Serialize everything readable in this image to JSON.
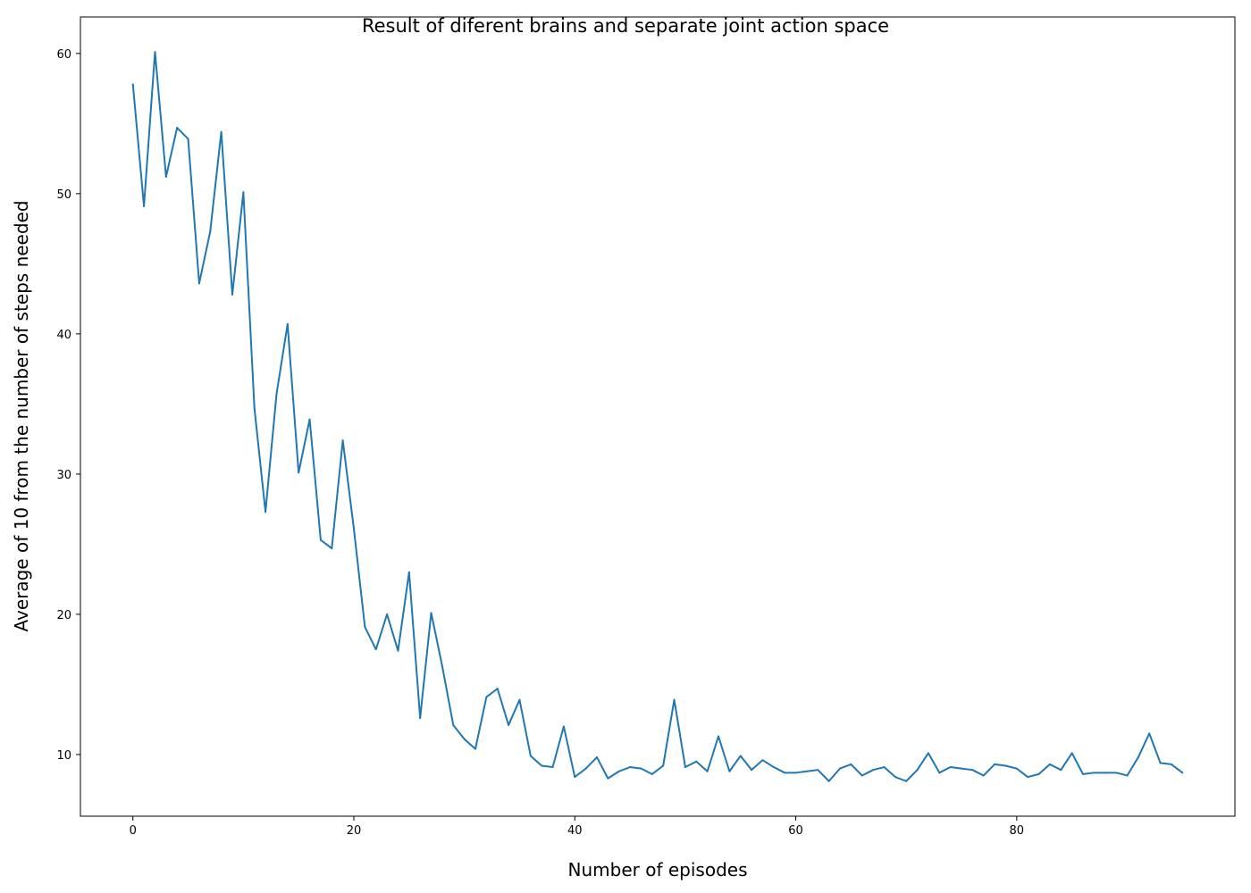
{
  "chart_data": {
    "type": "line",
    "title": "Result of diferent brains and separate joint action space",
    "xlabel": "Number of episodes",
    "ylabel": "Average of 10 from the number of steps needed",
    "xlim": [
      -4.75,
      99.75
    ],
    "ylim": [
      5.6,
      62.6
    ],
    "xticks": [
      0,
      20,
      40,
      60,
      80
    ],
    "yticks": [
      10,
      20,
      30,
      40,
      50,
      60
    ],
    "xtick_labels": [
      "0",
      "20",
      "40",
      "60",
      "80"
    ],
    "ytick_labels": [
      "10",
      "20",
      "30",
      "40",
      "50",
      "60"
    ],
    "grid": false,
    "series": [
      {
        "color": "#1f77b4",
        "x": [
          0,
          1,
          2,
          3,
          4,
          5,
          6,
          7,
          8,
          9,
          10,
          11,
          12,
          13,
          14,
          15,
          16,
          17,
          18,
          19,
          20,
          21,
          22,
          23,
          24,
          25,
          26,
          27,
          28,
          29,
          30,
          31,
          32,
          33,
          34,
          35,
          36,
          37,
          38,
          39,
          40,
          41,
          42,
          43,
          44,
          45,
          46,
          47,
          48,
          49,
          50,
          51,
          52,
          53,
          54,
          55,
          56,
          57,
          58,
          59,
          60,
          61,
          62,
          63,
          64,
          65,
          66,
          67,
          68,
          69,
          70,
          71,
          72,
          73,
          74,
          75,
          76,
          77,
          78,
          79,
          80,
          81,
          82,
          83,
          84,
          85,
          86,
          87,
          88,
          89,
          90,
          91,
          92,
          93,
          94,
          95
        ],
        "y": [
          57.8,
          49.1,
          60.1,
          51.2,
          54.7,
          53.9,
          43.6,
          47.3,
          54.4,
          42.8,
          50.1,
          34.7,
          27.3,
          35.7,
          40.7,
          30.1,
          33.9,
          25.3,
          24.7,
          32.4,
          26.1,
          19.1,
          17.5,
          20.0,
          17.4,
          23.0,
          12.6,
          20.1,
          16.3,
          12.1,
          11.1,
          10.4,
          14.1,
          14.7,
          12.1,
          13.9,
          9.9,
          9.2,
          9.1,
          12.0,
          8.4,
          9.0,
          9.8,
          8.3,
          8.8,
          9.1,
          9.0,
          8.6,
          9.2,
          13.9,
          9.1,
          9.5,
          8.8,
          11.3,
          8.8,
          9.9,
          8.9,
          9.6,
          9.1,
          8.7,
          8.7,
          8.8,
          8.9,
          8.1,
          9.0,
          9.3,
          8.5,
          8.9,
          9.1,
          8.4,
          8.1,
          8.9,
          10.1,
          8.7,
          9.1,
          9.0,
          8.9,
          8.5,
          9.3,
          9.2,
          9.0,
          8.4,
          8.6,
          9.3,
          8.9,
          10.1,
          8.6,
          8.7,
          8.7,
          8.7,
          8.5,
          9.8,
          11.5,
          9.4,
          9.3,
          8.7
        ]
      }
    ]
  }
}
